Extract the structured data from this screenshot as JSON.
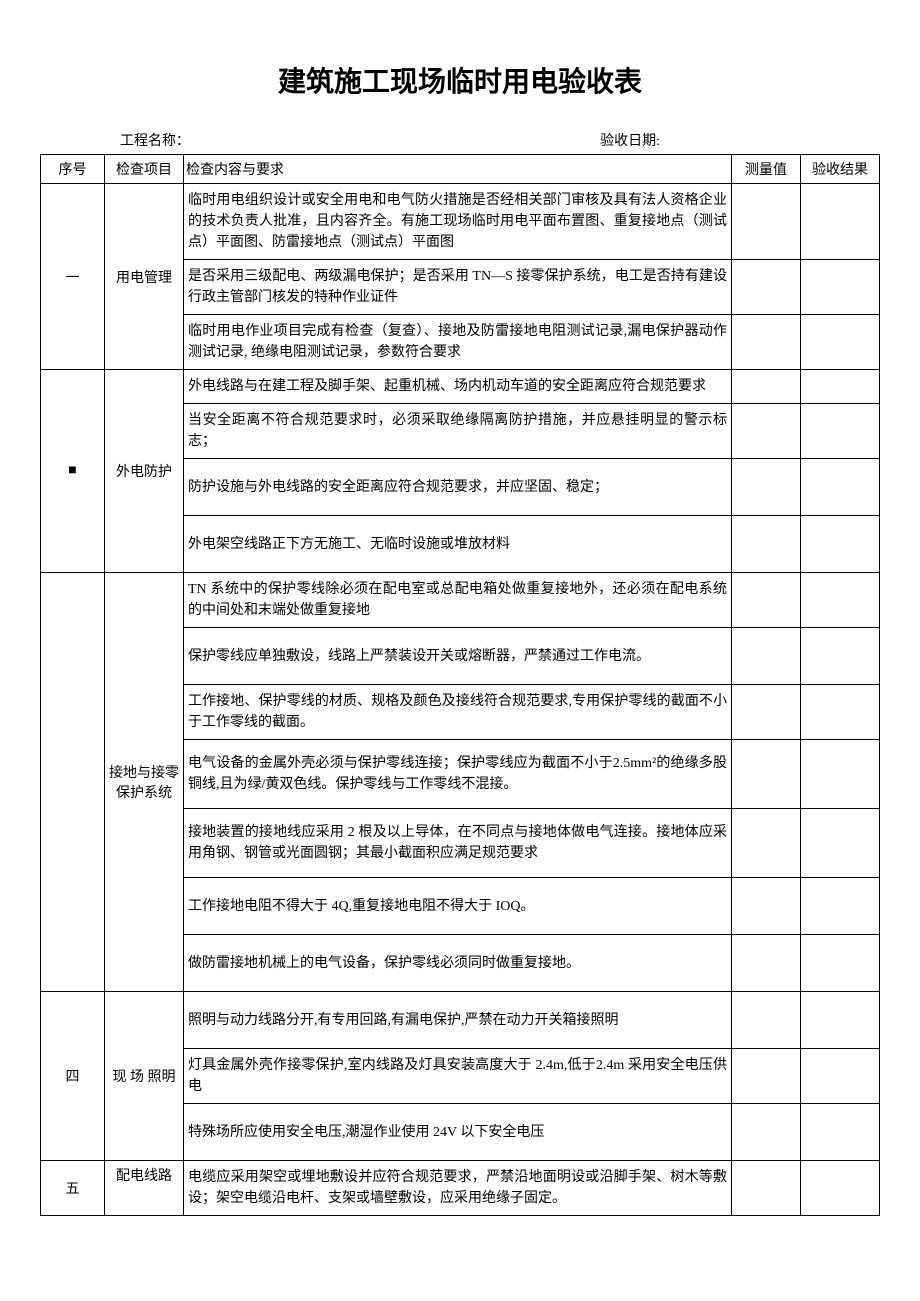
{
  "title": "建筑施工现场临时用电验收表",
  "meta": {
    "project_label": "工程名称：",
    "date_label": "验收日期:"
  },
  "headers": {
    "seq": "序号",
    "item": "检查项目",
    "content": "检查内容与要求",
    "measure": "测量值",
    "result": "验收结果"
  },
  "sections": [
    {
      "seq": "一",
      "item": "用电管理",
      "rows": [
        "临时用电组织设计或安全用电和电气防火措施是否经相关部门审核及具有法人资格企业的技术负责人批准，且内容齐全。有施工现场临时用电平面布置图、重复接地点（测试点）平面图、防雷接地点（测试点）平面图",
        "是否采用三级配电、两级漏电保护；是否采用 TN—S 接零保护系统，电工是否持有建设行政主管部门核发的特种作业证件",
        "临时用电作业项目完成有检查（复查）、接地及防雷接地电阻测试记录,漏电保护器动作测试记录, 绝缘电阻测试记录，参数符合要求"
      ]
    },
    {
      "seq": "■",
      "item": "外电防护",
      "rows": [
        "外电线路与在建工程及脚手架、起重机械、场内机动车道的安全距离应符合规范要求",
        "当安全距离不符合规范要求时，必须采取绝缘隔离防护措施，并应悬挂明显的警示标志；",
        "防护设施与外电线路的安全距离应符合规范要求，并应坚固、稳定；",
        "外电架空线路正下方无施工、无临时设施或堆放材料"
      ]
    },
    {
      "seq": "",
      "item": "接地与接零保护系统",
      "rows": [
        "TN 系统中的保护零线除必须在配电室或总配电箱处做重复接地外，还必须在配电系统的中间处和末端处做重复接地",
        "保护零线应单独敷设，线路上严禁装设开关或熔断器，严禁通过工作电流。",
        "工作接地、保护零线的材质、规格及颜色及接线符合规范要求,专用保护零线的截面不小于工作零线的截面。",
        "电气设备的金属外壳必须与保护零线连接；保护零线应为截面不小于2.5mm²的绝缘多股铜线,且为绿/黄双色线。保护零线与工作零线不混接。",
        "接地装置的接地线应采用 2 根及以上导体，在不同点与接地体做电气连接。接地体应采用角钢、钢管或光面圆钢；其最小截面积应满足规范要求",
        "工作接地电阻不得大于 4Q,重复接地电阻不得大于 IOQ。",
        "做防雷接地机械上的电气设备，保护零线必须同时做重复接地。"
      ]
    },
    {
      "seq": "四",
      "item": "现 场 照明",
      "rows": [
        "照明与动力线路分开,有专用回路,有漏电保护,严禁在动力开关箱接照明",
        "灯具金属外壳作接零保护,室内线路及灯具安装高度大于 2.4m,低于2.4m 采用安全电压供电",
        "特殊场所应使用安全电压,潮湿作业使用 24V 以下安全电压"
      ]
    },
    {
      "seq": "五",
      "item": "配电线路",
      "rows": [
        "电缆应采用架空或埋地敷设并应符合规范要求，严禁沿地面明设或沿脚手架、树木等敷设；架空电缆沿电杆、支架或墙壁敷设，应采用绝缘子固定。"
      ]
    }
  ]
}
